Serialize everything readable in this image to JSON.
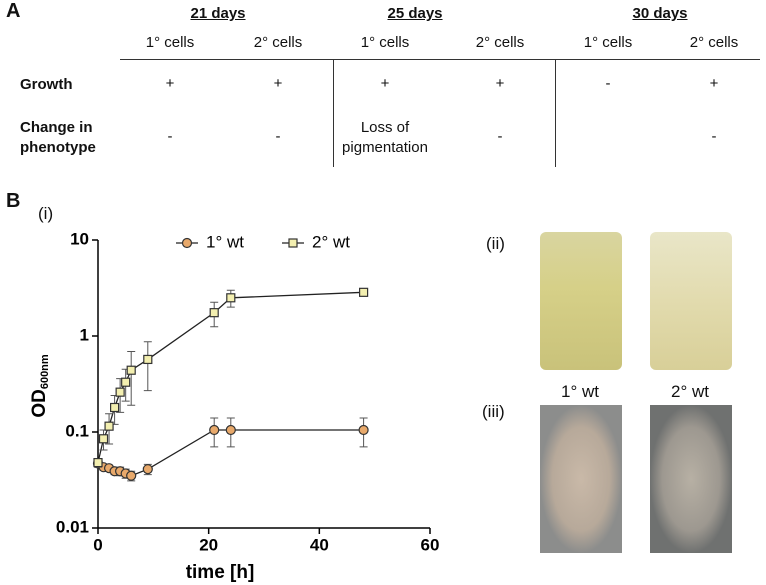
{
  "panel_a": {
    "label": "A",
    "groups": [
      "21 days",
      "25 days",
      "30 days"
    ],
    "columns": [
      "1° cells",
      "2° cells",
      "1° cells",
      "2° cells",
      "1° cells",
      "2° cells"
    ],
    "rows": [
      {
        "label": "Growth",
        "cells": [
          "+",
          "+",
          "+",
          "+",
          "-",
          "+"
        ]
      },
      {
        "label": "Change in phenotype",
        "cells": [
          "-",
          "-",
          "Loss of pigmentation",
          "-",
          null,
          "-"
        ]
      }
    ]
  },
  "panel_b": {
    "label": "B",
    "sublabels": [
      "(i)",
      "(ii)",
      "(iii)"
    ],
    "photo_labels": [
      "1° wt",
      "2° wt"
    ]
  },
  "chart_data": {
    "type": "line",
    "xlabel": "time [h]",
    "ylabel": "OD",
    "ylabel_sub": "600nm",
    "xlim": [
      0,
      60
    ],
    "xticks": [
      0,
      20,
      40,
      60
    ],
    "ylim": [
      0.01,
      10
    ],
    "yticks": [
      0.01,
      0.1,
      1,
      10
    ],
    "log_y": true,
    "legend": "top",
    "series": [
      {
        "name": "1° wt",
        "color": "#e8a96b",
        "marker": "circle",
        "x": [
          0,
          1,
          2,
          3,
          4,
          5,
          6,
          9,
          21,
          24,
          48
        ],
        "values": [
          0.047,
          0.043,
          0.042,
          0.039,
          0.039,
          0.037,
          0.035,
          0.041,
          0.105,
          0.105,
          0.105
        ],
        "errors": [
          0.004,
          0.003,
          0.003,
          0.003,
          0.004,
          0.004,
          0.004,
          0.005,
          0.035,
          0.035,
          0.035
        ]
      },
      {
        "name": "2° wt",
        "color": "#f3efb0",
        "marker": "square",
        "x": [
          0,
          1,
          2,
          3,
          4,
          5,
          6,
          9,
          21,
          24,
          48
        ],
        "values": [
          0.048,
          0.085,
          0.115,
          0.18,
          0.26,
          0.33,
          0.44,
          0.57,
          1.75,
          2.5,
          2.85
        ],
        "errors": [
          0.005,
          0.02,
          0.04,
          0.06,
          0.1,
          0.12,
          0.25,
          0.3,
          0.5,
          0.5,
          0.1
        ]
      }
    ]
  }
}
